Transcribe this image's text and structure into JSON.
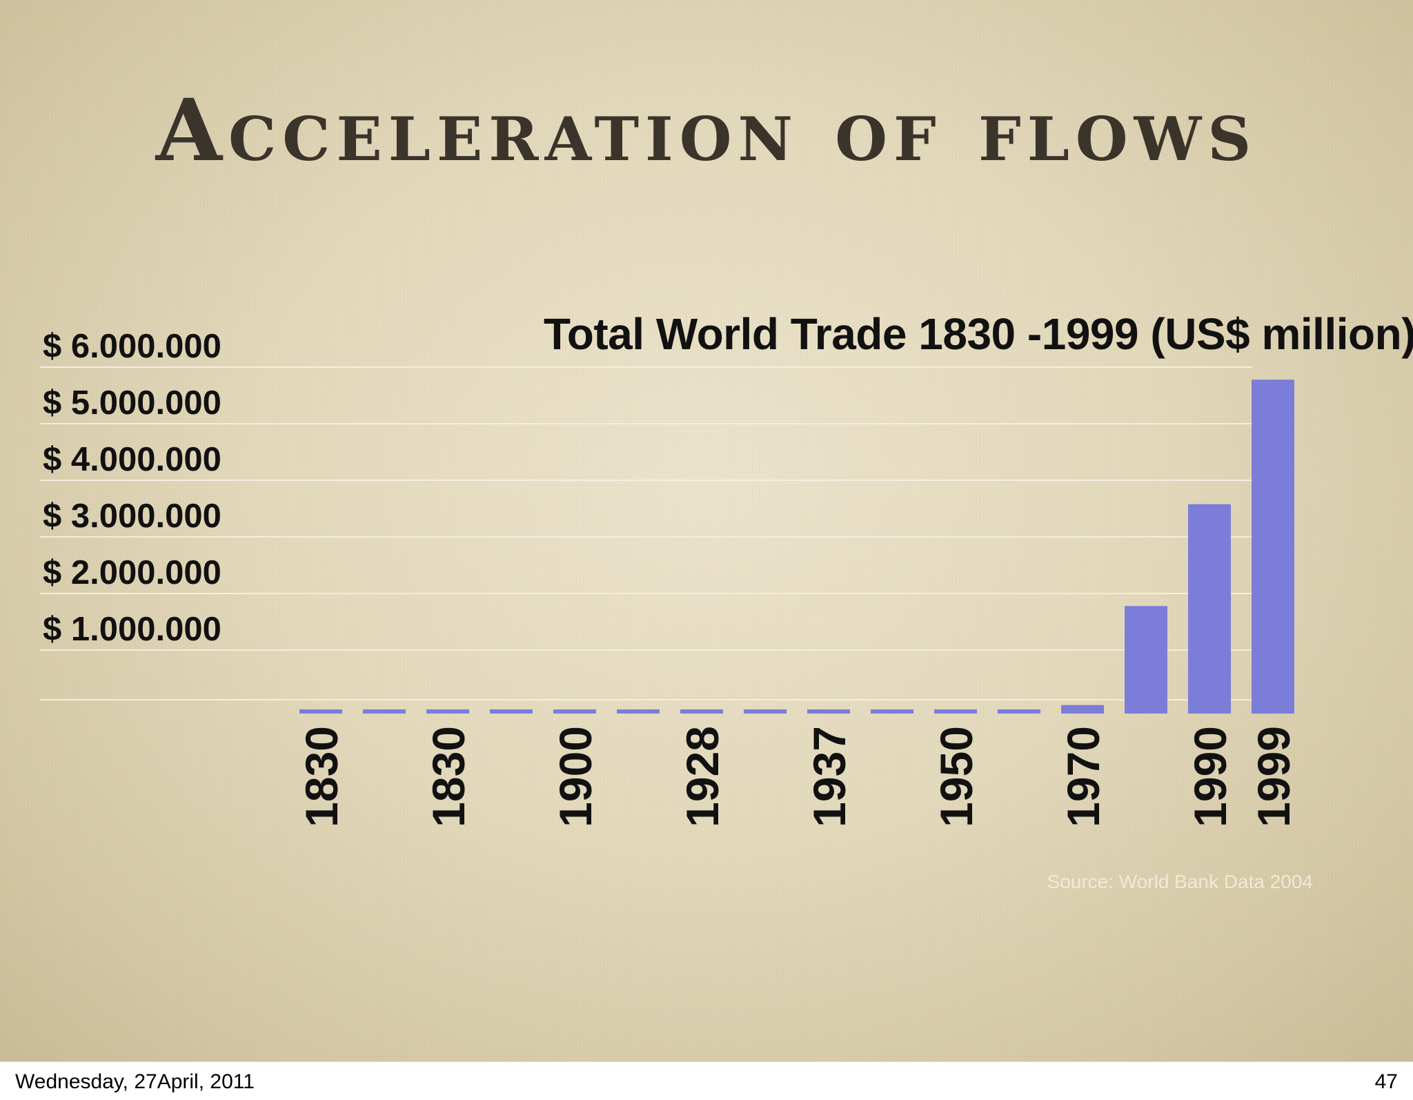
{
  "slide": {
    "title": "Acceleration of flows"
  },
  "chart_data": {
    "type": "bar",
    "title": "Total World Trade 1830 -1999 (US$ million)",
    "xlabel": "",
    "ylabel": "",
    "ylim": [
      0,
      6000000
    ],
    "grid": true,
    "y_tick_labels": [
      "$ 1.000.000",
      "$ 2.000.000",
      "$ 3.000.000",
      "$ 4.000.000",
      "$ 5.000.000",
      "$ 6.000.000"
    ],
    "y_tick_values": [
      1000000,
      2000000,
      3000000,
      4000000,
      5000000,
      6000000
    ],
    "categories": [
      "1830",
      "",
      "1830",
      "",
      "1900",
      "",
      "1928",
      "",
      "1937",
      "",
      "1950",
      "",
      "1970",
      "",
      "1990",
      "1999"
    ],
    "values": [
      10000,
      10000,
      10000,
      10000,
      10000,
      10000,
      10000,
      10000,
      10000,
      10000,
      20000,
      40000,
      150000,
      1900000,
      3700000,
      5900000
    ],
    "bar_color": "#7b7dd9",
    "source_note": "Source: World Bank Data 2004"
  },
  "footer": {
    "date": "Wednesday, 27April, 2011",
    "page": "47"
  }
}
